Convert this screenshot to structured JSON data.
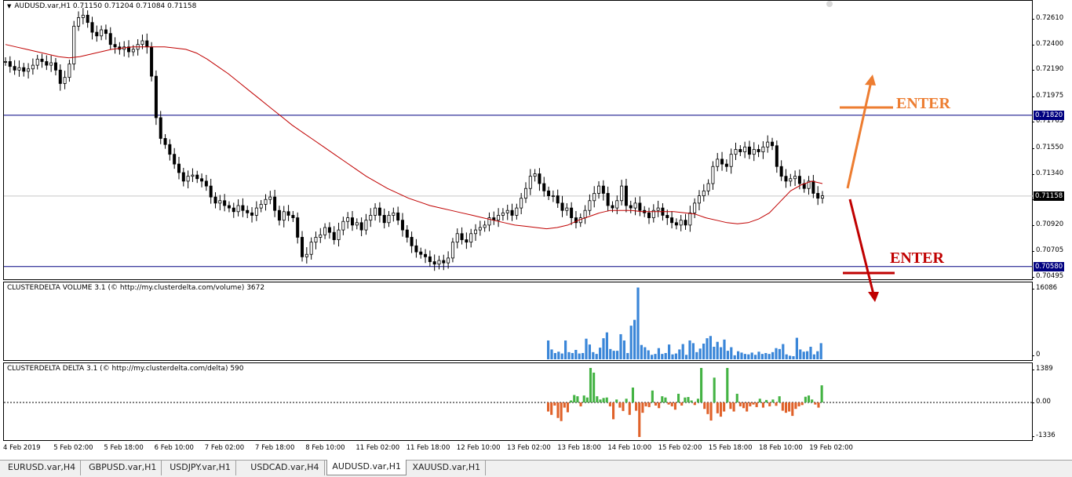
{
  "main_chart": {
    "header_icon": "dropdown-triangle-icon",
    "header": "AUDUSD.var,H1  0.71150 0.71204 0.71084 0.71158",
    "price_ticks": [
      "0.72610",
      "0.72400",
      "0.72190",
      "0.71975",
      "0.71765",
      "0.71550",
      "0.71340",
      "0.71130",
      "0.70920",
      "0.70705",
      "0.70495"
    ],
    "levels": [
      {
        "value": "0.71820",
        "color": "#000080",
        "text_color": "#ffffff"
      },
      {
        "value": "0.70580",
        "color": "#000080",
        "text_color": "#ffffff"
      }
    ],
    "current_price": {
      "value": "0.71158",
      "color": "#000000",
      "text_color": "#ffffff"
    },
    "annotations": [
      {
        "text": "ENTER",
        "color": "#ed7d31",
        "direction": "up"
      },
      {
        "text": "ENTER",
        "color": "#c00000",
        "direction": "down"
      }
    ],
    "ma_color": "#c00000",
    "candle_color": "#000000"
  },
  "volume_panel": {
    "header": "CLUSTERDELTA VOLUME 3.1 (© http://my.clusterdelta.com/volume) 3672",
    "ticks": [
      "16086",
      "0"
    ],
    "bar_color": "#3a86d8",
    "values": [
      4200,
      2200,
      1400,
      1700,
      1300,
      4200,
      1600,
      1400,
      2100,
      1300,
      1400,
      4600,
      3300,
      1600,
      1200,
      2600,
      4700,
      6000,
      2300,
      1900,
      1900,
      5600,
      4200,
      1400,
      7500,
      8800,
      16000,
      3200,
      2700,
      2000,
      1000,
      1200,
      2500,
      1200,
      1400,
      3300,
      1100,
      1300,
      2200,
      3400,
      1000,
      4200,
      3600,
      1600,
      2400,
      3500,
      4700,
      5200,
      2800,
      3900,
      2700,
      4400,
      1900,
      2700,
      900,
      1800,
      1500,
      1200,
      1100,
      1500,
      1000,
      1700,
      1200,
      1400,
      1200,
      1600,
      2500,
      2300,
      3400,
      1100,
      800,
      700,
      4800,
      2200,
      1700,
      1800,
      2800,
      1100,
      1800,
      3600
    ]
  },
  "delta_panel": {
    "header": "CLUSTERDELTA DELTA 3.1 (© http://my.clusterdelta.com/delta) 590",
    "ticks": [
      "1389",
      "0.00",
      "-1336"
    ],
    "pos_color": "#44b344",
    "neg_color": "#e0622a",
    "values": [
      -350,
      -480,
      -120,
      -600,
      -720,
      -200,
      -380,
      80,
      300,
      250,
      -150,
      280,
      200,
      1389,
      1200,
      250,
      120,
      180,
      200,
      -150,
      -650,
      120,
      -200,
      -330,
      150,
      -480,
      600,
      -320,
      -1336,
      -400,
      -150,
      -180,
      480,
      -120,
      -220,
      250,
      200,
      -80,
      -150,
      -280,
      350,
      -120,
      200,
      220,
      80,
      -100,
      150,
      1389,
      -250,
      -450,
      -700,
      1000,
      -420,
      -550,
      -350,
      1389,
      -250,
      -350,
      350,
      -150,
      -220,
      -350,
      -150,
      -80,
      -180,
      150,
      -200,
      100,
      -150,
      120,
      -130,
      250,
      -320,
      -400,
      -350,
      -520,
      -250,
      -150,
      -100,
      230,
      280,
      120,
      -80,
      -200,
      690
    ]
  },
  "time_axis": [
    "4 Feb 2019",
    "5 Feb 02:00",
    "5 Feb 18:00",
    "6 Feb 10:00",
    "7 Feb 02:00",
    "7 Feb 18:00",
    "8 Feb 10:00",
    "11 Feb 02:00",
    "11 Feb 18:00",
    "12 Feb 10:00",
    "13 Feb 02:00",
    "13 Feb 18:00",
    "14 Feb 10:00",
    "15 Feb 02:00",
    "15 Feb 18:00",
    "18 Feb 10:00",
    "19 Feb 02:00"
  ],
  "tabs": [
    "EURUSD.var,H4",
    "GBPUSD.var,H1",
    "USDJPY.var,H1",
    "USDCAD.var,H4",
    "AUDUSD.var,H1",
    "XAUUSD.var,H1"
  ],
  "active_tab": "AUDUSD.var,H1",
  "price_series": [
    0.7226,
    0.7222,
    0.7219,
    0.7221,
    0.7218,
    0.722,
    0.7223,
    0.7228,
    0.7226,
    0.7223,
    0.7225,
    0.7219,
    0.7208,
    0.7213,
    0.7224,
    0.7255,
    0.7262,
    0.7264,
    0.7258,
    0.725,
    0.7247,
    0.7252,
    0.7249,
    0.724,
    0.7238,
    0.7236,
    0.7238,
    0.7234,
    0.7236,
    0.724,
    0.7243,
    0.7238,
    0.7214,
    0.718,
    0.7163,
    0.7158,
    0.715,
    0.7142,
    0.7135,
    0.7128,
    0.7132,
    0.7133,
    0.713,
    0.7128,
    0.7124,
    0.7115,
    0.711,
    0.7112,
    0.7108,
    0.7106,
    0.7103,
    0.7108,
    0.7104,
    0.7102,
    0.71,
    0.7106,
    0.7109,
    0.7113,
    0.7115,
    0.7104,
    0.7096,
    0.7103,
    0.71,
    0.7098,
    0.7082,
    0.7066,
    0.7068,
    0.7078,
    0.7082,
    0.7084,
    0.709,
    0.7086,
    0.708,
    0.7088,
    0.7095,
    0.7098,
    0.7092,
    0.7094,
    0.7088,
    0.7096,
    0.71,
    0.7106,
    0.71,
    0.7094,
    0.71,
    0.7102,
    0.7096,
    0.7088,
    0.7082,
    0.7075,
    0.707,
    0.7068,
    0.7066,
    0.7062,
    0.706,
    0.7063,
    0.7061,
    0.7065,
    0.7078,
    0.7085,
    0.708,
    0.7078,
    0.7085,
    0.7088,
    0.709,
    0.7092,
    0.7098,
    0.7096,
    0.71,
    0.7102,
    0.7104,
    0.71,
    0.7106,
    0.7114,
    0.7122,
    0.7132,
    0.7134,
    0.7126,
    0.712,
    0.7116,
    0.7116,
    0.711,
    0.7104,
    0.7106,
    0.7098,
    0.7094,
    0.7098,
    0.7104,
    0.7112,
    0.7118,
    0.7124,
    0.7118,
    0.7108,
    0.7106,
    0.7112,
    0.7124,
    0.7108,
    0.7106,
    0.711,
    0.7104,
    0.7102,
    0.7098,
    0.7104,
    0.7106,
    0.71,
    0.7098,
    0.7094,
    0.7092,
    0.7096,
    0.7092,
    0.7102,
    0.711,
    0.7116,
    0.712,
    0.7126,
    0.714,
    0.7146,
    0.7142,
    0.714,
    0.715,
    0.7154,
    0.7152,
    0.7156,
    0.715,
    0.7154,
    0.7152,
    0.7156,
    0.716,
    0.7157,
    0.714,
    0.7132,
    0.7128,
    0.713,
    0.7132,
    0.7126,
    0.7122,
    0.7128,
    0.7118,
    0.7114,
    0.7116
  ],
  "ma_series": [
    0.724,
    0.7238,
    0.7236,
    0.7234,
    0.7232,
    0.723,
    0.7229,
    0.723,
    0.7232,
    0.7234,
    0.7236,
    0.7237,
    0.7238,
    0.7238,
    0.7238,
    0.7238,
    0.7237,
    0.7236,
    0.7233,
    0.7228,
    0.7222,
    0.7216,
    0.7209,
    0.7202,
    0.7195,
    0.7188,
    0.7181,
    0.7174,
    0.7168,
    0.7162,
    0.7156,
    0.715,
    0.7144,
    0.7138,
    0.7132,
    0.7127,
    0.7122,
    0.7118,
    0.7114,
    0.7111,
    0.7108,
    0.7106,
    0.7104,
    0.7102,
    0.71,
    0.7098,
    0.7096,
    0.7094,
    0.7092,
    0.7091,
    0.709,
    0.7089,
    0.709,
    0.7092,
    0.7096,
    0.7099,
    0.7102,
    0.7104,
    0.7104,
    0.7104,
    0.7103,
    0.7103,
    0.7103,
    0.7103,
    0.7102,
    0.7101,
    0.7098,
    0.7096,
    0.7094,
    0.7093,
    0.7094,
    0.7097,
    0.7102,
    0.7111,
    0.712,
    0.7125,
    0.7128,
    0.7126
  ]
}
